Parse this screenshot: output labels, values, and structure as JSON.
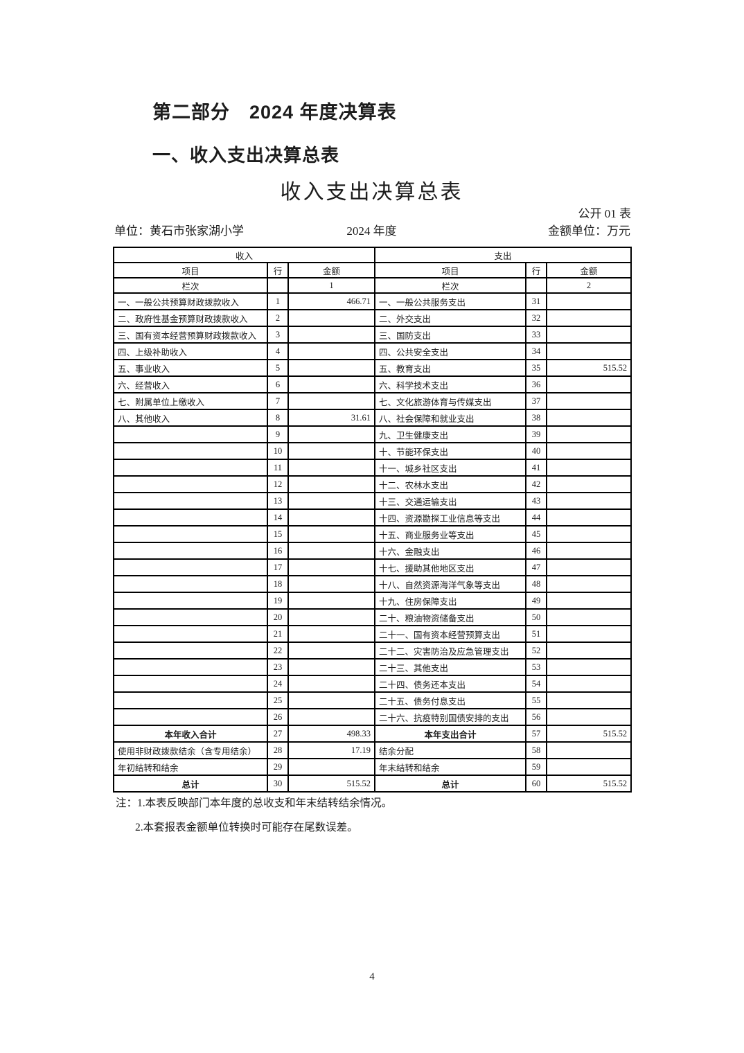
{
  "page": {
    "part_title": "第二部分　2024 年度决算表",
    "section_title": "一、收入支出决算总表",
    "table_title": "收入支出决算总表",
    "table_code": "公开 01 表",
    "unit_label": "单位：黄石市张家湖小学",
    "year_label": "2024 年度",
    "amount_unit_label": "金额单位：万元",
    "notes": [
      "注：1.本表反映部门本年度的总收支和年末结转结余情况。",
      "2.本套报表金额单位转换时可能存在尾数误差。"
    ],
    "page_number": "4"
  },
  "table": {
    "income_header": "收入",
    "expense_header": "支出",
    "col_headers": {
      "item": "项目",
      "line": "行",
      "amount": "金额"
    },
    "lanci_label": "栏次",
    "income_lanci_no": "1",
    "expense_lanci_no": "2",
    "rows": [
      {
        "income_item": "一、一般公共预算财政拨款收入",
        "income_line": "1",
        "income_amount": "466.71",
        "expense_item": "一、一般公共服务支出",
        "expense_line": "31",
        "expense_amount": ""
      },
      {
        "income_item": "二、政府性基金预算财政拨款收入",
        "income_line": "2",
        "income_amount": "",
        "expense_item": "二、外交支出",
        "expense_line": "32",
        "expense_amount": ""
      },
      {
        "income_item": "三、国有资本经营预算财政拨款收入",
        "income_line": "3",
        "income_amount": "",
        "expense_item": "三、国防支出",
        "expense_line": "33",
        "expense_amount": ""
      },
      {
        "income_item": "四、上级补助收入",
        "income_line": "4",
        "income_amount": "",
        "expense_item": "四、公共安全支出",
        "expense_line": "34",
        "expense_amount": ""
      },
      {
        "income_item": "五、事业收入",
        "income_line": "5",
        "income_amount": "",
        "expense_item": "五、教育支出",
        "expense_line": "35",
        "expense_amount": "515.52"
      },
      {
        "income_item": "六、经营收入",
        "income_line": "6",
        "income_amount": "",
        "expense_item": "六、科学技术支出",
        "expense_line": "36",
        "expense_amount": ""
      },
      {
        "income_item": "七、附属单位上缴收入",
        "income_line": "7",
        "income_amount": "",
        "expense_item": "七、文化旅游体育与传媒支出",
        "expense_line": "37",
        "expense_amount": ""
      },
      {
        "income_item": "八、其他收入",
        "income_line": "8",
        "income_amount": "31.61",
        "expense_item": "八、社会保障和就业支出",
        "expense_line": "38",
        "expense_amount": ""
      },
      {
        "income_item": "",
        "income_line": "9",
        "income_amount": "",
        "expense_item": "九、卫生健康支出",
        "expense_line": "39",
        "expense_amount": ""
      },
      {
        "income_item": "",
        "income_line": "10",
        "income_amount": "",
        "expense_item": "十、节能环保支出",
        "expense_line": "40",
        "expense_amount": ""
      },
      {
        "income_item": "",
        "income_line": "11",
        "income_amount": "",
        "expense_item": "十一、城乡社区支出",
        "expense_line": "41",
        "expense_amount": ""
      },
      {
        "income_item": "",
        "income_line": "12",
        "income_amount": "",
        "expense_item": "十二、农林水支出",
        "expense_line": "42",
        "expense_amount": ""
      },
      {
        "income_item": "",
        "income_line": "13",
        "income_amount": "",
        "expense_item": "十三、交通运输支出",
        "expense_line": "43",
        "expense_amount": ""
      },
      {
        "income_item": "",
        "income_line": "14",
        "income_amount": "",
        "expense_item": "十四、资源勘探工业信息等支出",
        "expense_line": "44",
        "expense_amount": ""
      },
      {
        "income_item": "",
        "income_line": "15",
        "income_amount": "",
        "expense_item": "十五、商业服务业等支出",
        "expense_line": "45",
        "expense_amount": ""
      },
      {
        "income_item": "",
        "income_line": "16",
        "income_amount": "",
        "expense_item": "十六、金融支出",
        "expense_line": "46",
        "expense_amount": ""
      },
      {
        "income_item": "",
        "income_line": "17",
        "income_amount": "",
        "expense_item": "十七、援助其他地区支出",
        "expense_line": "47",
        "expense_amount": ""
      },
      {
        "income_item": "",
        "income_line": "18",
        "income_amount": "",
        "expense_item": "十八、自然资源海洋气象等支出",
        "expense_line": "48",
        "expense_amount": ""
      },
      {
        "income_item": "",
        "income_line": "19",
        "income_amount": "",
        "expense_item": "十九、住房保障支出",
        "expense_line": "49",
        "expense_amount": ""
      },
      {
        "income_item": "",
        "income_line": "20",
        "income_amount": "",
        "expense_item": "二十、粮油物资储备支出",
        "expense_line": "50",
        "expense_amount": ""
      },
      {
        "income_item": "",
        "income_line": "21",
        "income_amount": "",
        "expense_item": "二十一、国有资本经营预算支出",
        "expense_line": "51",
        "expense_amount": ""
      },
      {
        "income_item": "",
        "income_line": "22",
        "income_amount": "",
        "expense_item": "二十二、灾害防治及应急管理支出",
        "expense_line": "52",
        "expense_amount": ""
      },
      {
        "income_item": "",
        "income_line": "23",
        "income_amount": "",
        "expense_item": "二十三、其他支出",
        "expense_line": "53",
        "expense_amount": ""
      },
      {
        "income_item": "",
        "income_line": "24",
        "income_amount": "",
        "expense_item": "二十四、债务还本支出",
        "expense_line": "54",
        "expense_amount": ""
      },
      {
        "income_item": "",
        "income_line": "25",
        "income_amount": "",
        "expense_item": "二十五、债务付息支出",
        "expense_line": "55",
        "expense_amount": ""
      },
      {
        "income_item": "",
        "income_line": "26",
        "income_amount": "",
        "expense_item": "二十六、抗疫特别国债安排的支出",
        "expense_line": "56",
        "expense_amount": ""
      },
      {
        "income_item": "本年收入合计",
        "income_line": "27",
        "income_amount": "498.33",
        "expense_item": "本年支出合计",
        "expense_line": "57",
        "expense_amount": "515.52",
        "emphasis": true
      },
      {
        "income_item": "使用非财政拨款结余（含专用结余）",
        "income_line": "28",
        "income_amount": "17.19",
        "expense_item": "结余分配",
        "expense_line": "58",
        "expense_amount": ""
      },
      {
        "income_item": "年初结转和结余",
        "income_line": "29",
        "income_amount": "",
        "expense_item": "年末结转和结余",
        "expense_line": "59",
        "expense_amount": ""
      },
      {
        "income_item": "总计",
        "income_line": "30",
        "income_amount": "515.52",
        "expense_item": "总计",
        "expense_line": "60",
        "expense_amount": "515.52",
        "emphasis": true
      }
    ]
  }
}
